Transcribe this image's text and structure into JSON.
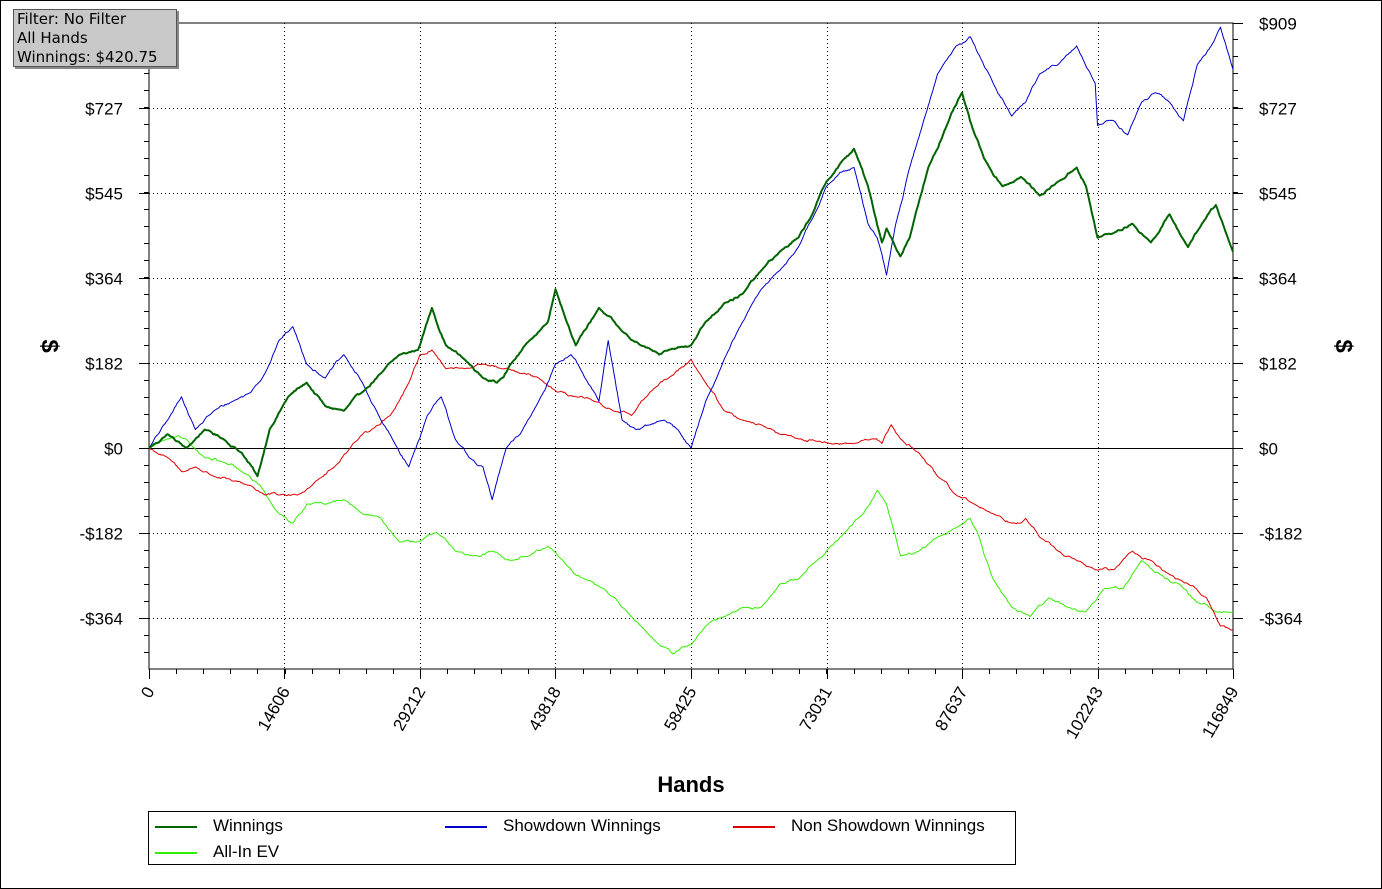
{
  "info_box": {
    "filter": "Filter: No Filter",
    "hands": "All Hands",
    "winnings": "Winnings: $420.75"
  },
  "chart_data": {
    "type": "line",
    "title": "",
    "xlabel": "Hands",
    "ylabel_left": "$",
    "ylabel_right": "$",
    "xlim": [
      0,
      116849
    ],
    "ylim": [
      -472,
      909
    ],
    "x_ticks": [
      0,
      14606,
      29212,
      43818,
      58425,
      73031,
      87637,
      102243,
      116849
    ],
    "y_ticks": [
      {
        "value": 909,
        "label": "$909"
      },
      {
        "value": 727,
        "label": "$727"
      },
      {
        "value": 545,
        "label": "$545"
      },
      {
        "value": 364,
        "label": "$364"
      },
      {
        "value": 182,
        "label": "$182"
      },
      {
        "value": 0,
        "label": "$0"
      },
      {
        "value": -182,
        "label": "-$182"
      },
      {
        "value": -364,
        "label": "-$364"
      }
    ],
    "grid": true,
    "legend_position": "bottom",
    "series": [
      {
        "name": "Winnings",
        "color": "#006400",
        "stroke_width": 2,
        "x": [
          0,
          2000,
          4000,
          6000,
          8000,
          10000,
          11700,
          13000,
          15000,
          17000,
          19000,
          21000,
          23000,
          25000,
          27000,
          29000,
          30500,
          32000,
          34000,
          36000,
          37500,
          39000,
          41000,
          43000,
          43818,
          46000,
          48500,
          51000,
          53000,
          55000,
          56000,
          58425,
          60000,
          62000,
          64000,
          66000,
          68000,
          70000,
          71500,
          73031,
          75000,
          76000,
          77500,
          79000,
          79500,
          81000,
          82000,
          84000,
          86000,
          87637,
          88500,
          90000,
          92000,
          94000,
          96000,
          98000,
          100000,
          101000,
          102243,
          104000,
          106000,
          108000,
          110000,
          112000,
          113500,
          115000,
          116849
        ],
        "values": [
          0,
          30,
          0,
          40,
          20,
          -10,
          -60,
          40,
          110,
          140,
          90,
          80,
          120,
          160,
          200,
          210,
          300,
          220,
          190,
          150,
          140,
          180,
          230,
          270,
          340,
          220,
          300,
          250,
          220,
          200,
          210,
          220,
          270,
          310,
          330,
          380,
          420,
          450,
          500,
          570,
          620,
          640,
          560,
          440,
          470,
          410,
          450,
          600,
          690,
          760,
          700,
          620,
          560,
          580,
          540,
          570,
          600,
          560,
          450,
          460,
          480,
          440,
          500,
          430,
          480,
          520,
          420
        ]
      },
      {
        "name": "Showdown Winnings",
        "color": "#0000cc",
        "stroke_width": 1,
        "x": [
          0,
          2000,
          3500,
          5000,
          7000,
          9000,
          11000,
          12500,
          14000,
          15500,
          17000,
          19000,
          21000,
          23000,
          25000,
          26500,
          28000,
          30000,
          31500,
          33000,
          34500,
          36000,
          37000,
          38500,
          40000,
          42000,
          43818,
          45500,
          47000,
          48500,
          49500,
          51000,
          52500,
          54000,
          55500,
          57000,
          58425,
          60000,
          62000,
          64000,
          66000,
          68000,
          70000,
          72000,
          73031,
          74500,
          76000,
          77500,
          78500,
          79500,
          80500,
          82000,
          83500,
          85000,
          87000,
          88500,
          89500,
          91000,
          93000,
          94500,
          96000,
          98000,
          100000,
          102000,
          102243,
          104000,
          105500,
          107000,
          108500,
          110000,
          111500,
          113000,
          114500,
          115500,
          116849
        ],
        "values": [
          0,
          60,
          110,
          40,
          80,
          100,
          120,
          160,
          230,
          260,
          180,
          150,
          200,
          140,
          60,
          10,
          -40,
          70,
          110,
          20,
          -20,
          -40,
          -110,
          0,
          30,
          100,
          180,
          200,
          150,
          100,
          230,
          60,
          40,
          50,
          60,
          40,
          0,
          100,
          190,
          270,
          340,
          380,
          430,
          510,
          560,
          590,
          600,
          480,
          450,
          370,
          480,
          600,
          700,
          800,
          860,
          880,
          840,
          780,
          710,
          740,
          800,
          820,
          860,
          780,
          690,
          700,
          670,
          740,
          760,
          740,
          700,
          820,
          860,
          900,
          810
        ]
      },
      {
        "name": "Non Showdown Winnings",
        "color": "#dd0000",
        "stroke_width": 1,
        "x": [
          0,
          2000,
          3500,
          5000,
          7000,
          9000,
          11000,
          12500,
          14000,
          16000,
          18000,
          20000,
          22000,
          24000,
          26000,
          28000,
          29212,
          30500,
          32000,
          34000,
          36000,
          38000,
          40000,
          42000,
          44000,
          46000,
          48000,
          50000,
          52000,
          54000,
          56000,
          58425,
          60000,
          62000,
          64000,
          66000,
          68000,
          70000,
          72000,
          74000,
          76000,
          78000,
          79000,
          80000,
          81000,
          83000,
          85000,
          87000,
          89000,
          91000,
          93000,
          94500,
          96000,
          98000,
          100000,
          102000,
          104000,
          106000,
          108000,
          110000,
          112000,
          114000,
          115500,
          116849
        ],
        "values": [
          0,
          -20,
          -50,
          -40,
          -60,
          -70,
          -80,
          -100,
          -100,
          -100,
          -70,
          -40,
          10,
          40,
          70,
          140,
          200,
          210,
          170,
          170,
          180,
          170,
          160,
          150,
          120,
          110,
          100,
          80,
          70,
          120,
          150,
          190,
          140,
          80,
          60,
          50,
          30,
          20,
          15,
          10,
          10,
          20,
          10,
          50,
          20,
          -10,
          -60,
          -100,
          -120,
          -140,
          -160,
          -150,
          -190,
          -220,
          -240,
          -260,
          -260,
          -220,
          -240,
          -270,
          -290,
          -320,
          -380,
          -390
        ]
      },
      {
        "name": "All-In EV",
        "color": "#33ee00",
        "stroke_width": 1,
        "x": [
          0,
          2000,
          4000,
          6000,
          8000,
          10000,
          12000,
          14000,
          15500,
          17000,
          19000,
          21000,
          23000,
          25000,
          27000,
          29000,
          31000,
          33000,
          35000,
          37000,
          39000,
          41000,
          43000,
          45000,
          47000,
          49000,
          51000,
          53000,
          55000,
          56500,
          58425,
          60000,
          62000,
          64000,
          66000,
          68000,
          70000,
          72000,
          73031,
          75000,
          77000,
          78500,
          79500,
          81000,
          83000,
          85000,
          87000,
          88500,
          89500,
          91000,
          93000,
          95000,
          97000,
          99000,
          101000,
          103000,
          105000,
          107000,
          109000,
          111000,
          113000,
          115000,
          116849
        ],
        "values": [
          0,
          20,
          20,
          -20,
          -30,
          -50,
          -80,
          -140,
          -160,
          -120,
          -120,
          -110,
          -140,
          -150,
          -200,
          -200,
          -180,
          -220,
          -230,
          -220,
          -240,
          -230,
          -210,
          -250,
          -280,
          -300,
          -340,
          -380,
          -420,
          -440,
          -420,
          -380,
          -360,
          -340,
          -340,
          -290,
          -280,
          -240,
          -220,
          -180,
          -140,
          -90,
          -120,
          -230,
          -220,
          -190,
          -170,
          -150,
          -190,
          -280,
          -340,
          -360,
          -320,
          -340,
          -350,
          -300,
          -300,
          -240,
          -270,
          -290,
          -330,
          -350,
          -350
        ]
      }
    ]
  },
  "legend": {
    "items": [
      {
        "name": "Winnings",
        "color": "#006400"
      },
      {
        "name": "Showdown Winnings",
        "color": "#0000cc"
      },
      {
        "name": "Non Showdown Winnings",
        "color": "#dd0000"
      },
      {
        "name": "All-In EV",
        "color": "#33ee00"
      }
    ]
  }
}
